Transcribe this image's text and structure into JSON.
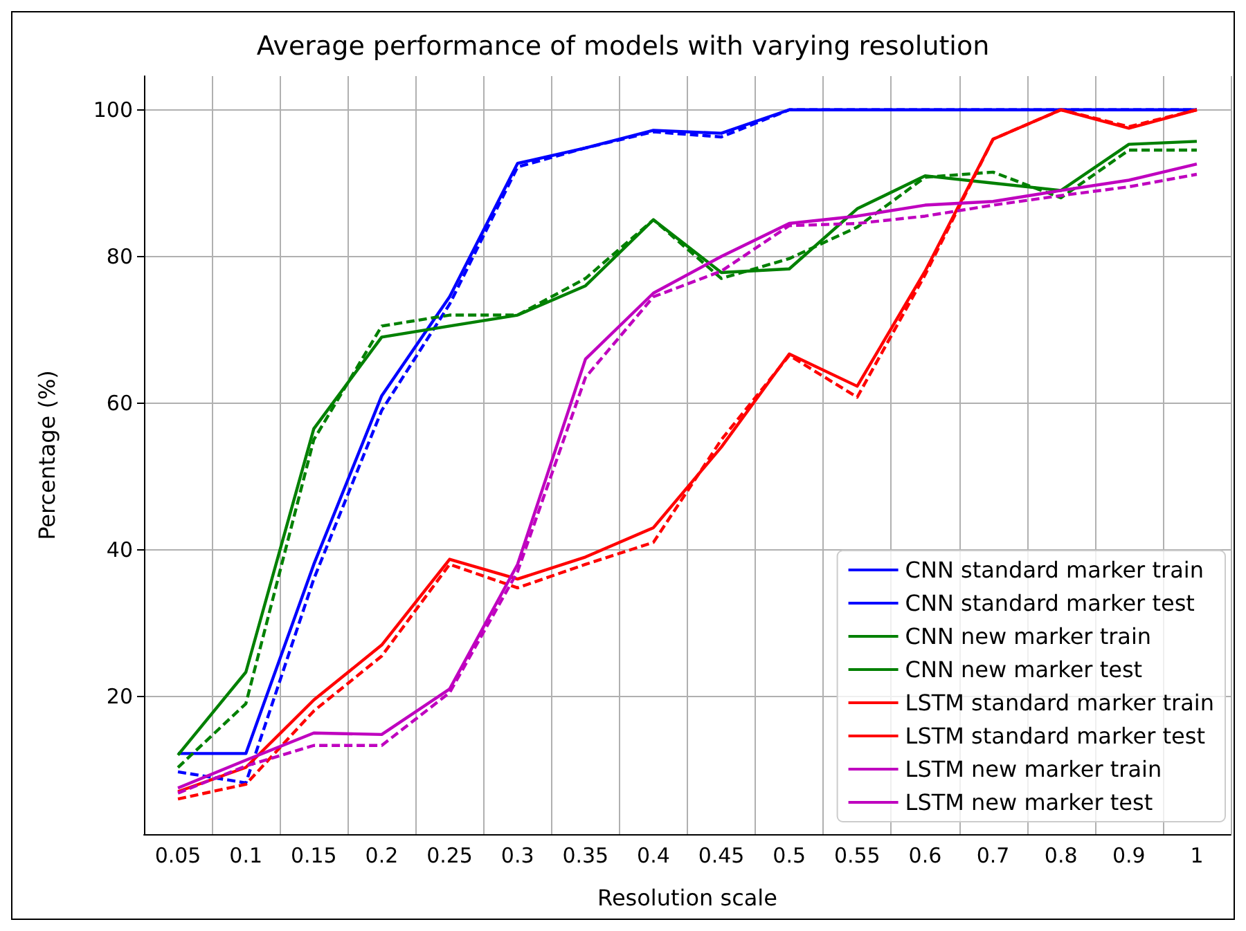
{
  "chart_data": {
    "type": "line",
    "title": "Average performance of models with varying resolution",
    "xlabel": "Resolution scale",
    "ylabel": "Percentage (%)",
    "categories": [
      "0.05",
      "0.1",
      "0.15",
      "0.2",
      "0.25",
      "0.3",
      "0.35",
      "0.4",
      "0.45",
      "0.5",
      "0.55",
      "0.6",
      "0.7",
      "0.8",
      "0.9",
      "1"
    ],
    "ylim": [
      1.2,
      104.6
    ],
    "yticks": [
      20,
      40,
      60,
      80,
      100
    ],
    "grid": true,
    "legend": "bottom right",
    "series": [
      {
        "name": "CNN standard marker train",
        "color": "#0000ff",
        "line_style": "solid",
        "values": [
          12.2,
          12.2,
          38,
          61,
          74.5,
          92.7,
          94.8,
          97.2,
          96.8,
          100,
          100,
          100,
          100,
          100,
          100,
          100
        ]
      },
      {
        "name": "CNN standard marker test",
        "color": "#0000ff",
        "line_style": "dashed",
        "values": [
          9.7,
          8.2,
          36,
          59,
          73.5,
          92.2,
          94.8,
          97,
          96.3,
          100,
          100,
          100,
          100,
          100,
          100,
          100
        ]
      },
      {
        "name": "CNN new marker train",
        "color": "#008000",
        "line_style": "solid",
        "values": [
          12,
          23.3,
          56.5,
          69,
          70.5,
          72,
          76,
          85,
          77.8,
          78.3,
          86.5,
          91,
          90,
          89,
          95.3,
          95.7
        ]
      },
      {
        "name": "CNN new marker test",
        "color": "#008000",
        "line_style": "dashed",
        "values": [
          10.3,
          19,
          55,
          70.5,
          72,
          72,
          77,
          85,
          77,
          79.7,
          84,
          90.8,
          91.5,
          88,
          94.5,
          94.5
        ]
      },
      {
        "name": "LSTM standard marker train",
        "color": "#ff0000",
        "line_style": "solid",
        "values": [
          7,
          10.3,
          19.5,
          27,
          38.7,
          36,
          39,
          43,
          54,
          66.7,
          62.3,
          78,
          96,
          100,
          97.5,
          100
        ]
      },
      {
        "name": "LSTM standard marker test",
        "color": "#ff0000",
        "line_style": "dashed",
        "values": [
          6,
          8,
          18,
          25.5,
          38,
          34.8,
          38,
          41,
          55,
          66.5,
          60.8,
          77.5,
          96,
          100,
          97.7,
          100
        ]
      },
      {
        "name": "LSTM new marker train",
        "color": "#bf00bf",
        "line_style": "solid",
        "values": [
          7.5,
          11.3,
          15,
          14.8,
          21,
          38,
          66,
          75,
          80,
          84.5,
          85.5,
          87,
          87.5,
          89,
          90.4,
          92.6
        ]
      },
      {
        "name": "LSTM new marker test",
        "color": "#bf00bf",
        "line_style": "dashed",
        "values": [
          6.8,
          10.5,
          13.3,
          13.3,
          20.5,
          37,
          63.5,
          74.5,
          78,
          84.2,
          84.5,
          85.5,
          87,
          88.3,
          89.5,
          91.2
        ]
      }
    ]
  }
}
